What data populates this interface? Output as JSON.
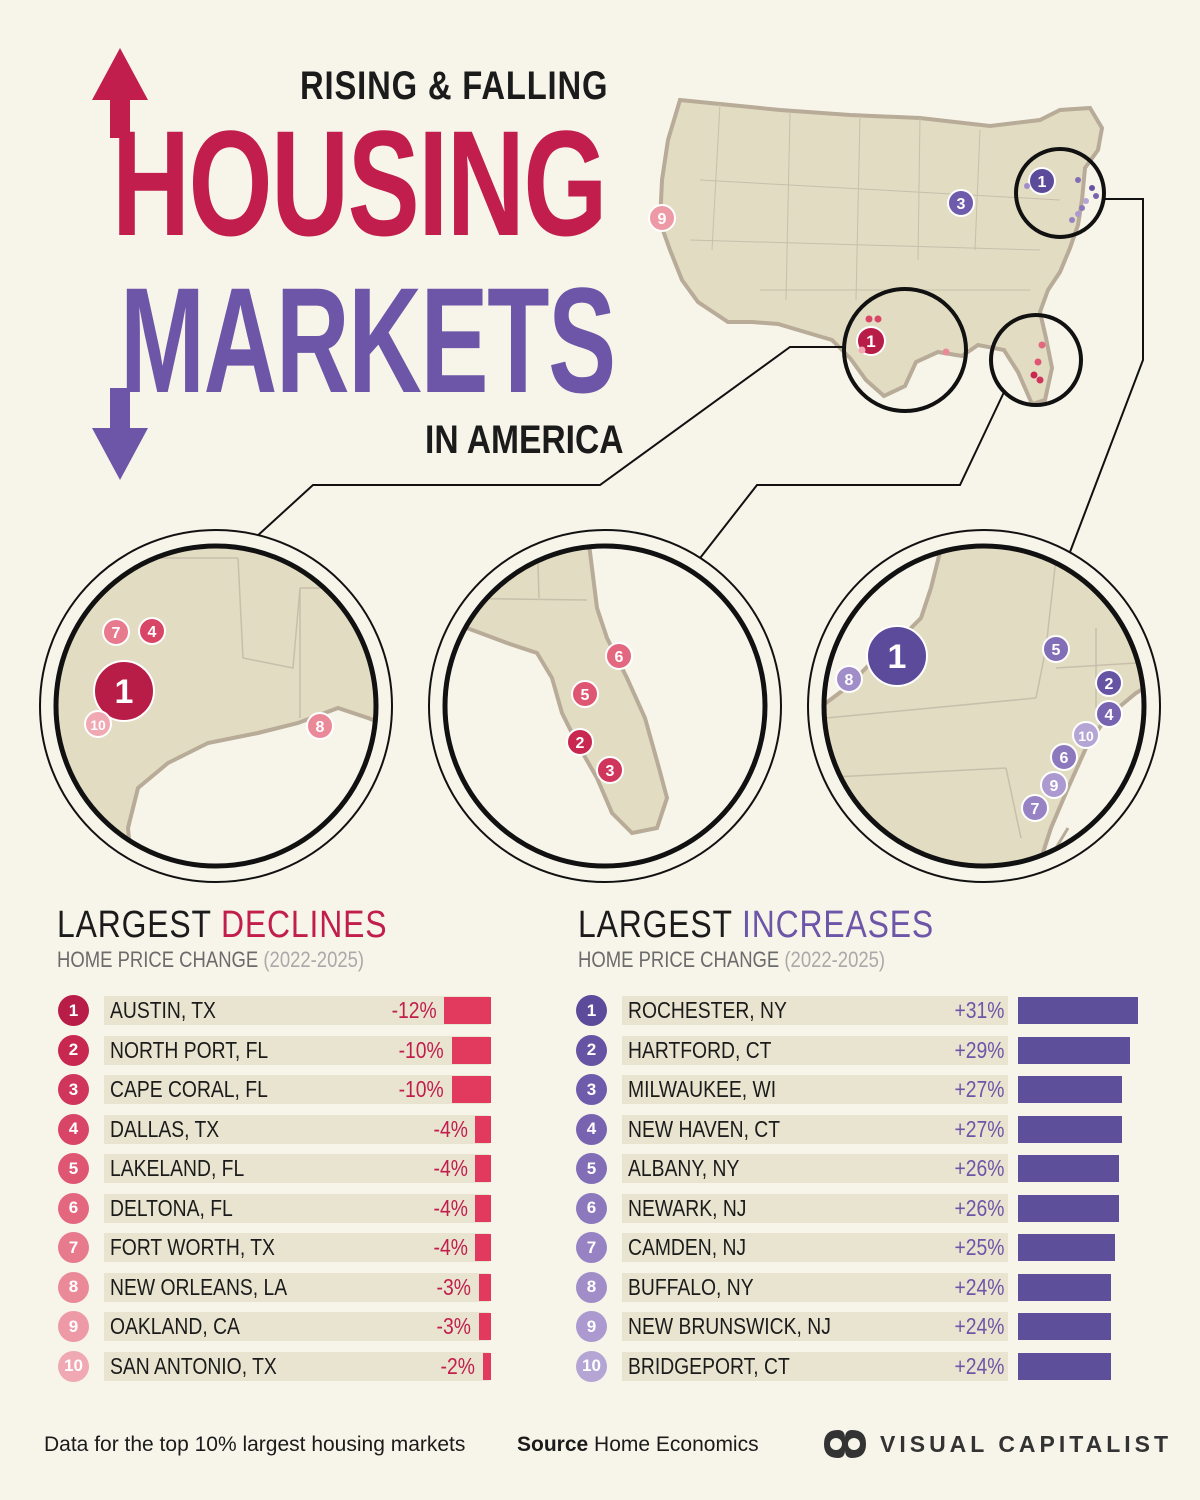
{
  "title": {
    "line1": "RISING & FALLING",
    "line2": "HOUSING",
    "line3": "MARKETS",
    "line4": "IN AMERICA"
  },
  "colors": {
    "decline": "#c21e4d",
    "increase": "#6d55a8",
    "increase_bar": "#5e4f9a",
    "decline_bar": "#e23a5e"
  },
  "declines_section": {
    "title_prefix": "LARGEST ",
    "title_accent": "DECLINES",
    "subtitle": "HOME PRICE CHANGE ",
    "period": "(2022-2025)"
  },
  "increases_section": {
    "title_prefix": "LARGEST ",
    "title_accent": "INCREASES",
    "subtitle": "HOME PRICE CHANGE ",
    "period": "(2022-2025)"
  },
  "chart_data": [
    {
      "type": "bar",
      "title": "LARGEST DECLINES",
      "subtitle": "HOME PRICE CHANGE (2022-2025)",
      "ranks": [
        "1",
        "2",
        "3",
        "4",
        "5",
        "6",
        "7",
        "8",
        "9",
        "10"
      ],
      "categories": [
        "AUSTIN, TX",
        "NORTH PORT, FL",
        "CAPE CORAL, FL",
        "DALLAS, TX",
        "LAKELAND, FL",
        "DELTONA, FL",
        "FORT WORTH, TX",
        "NEW ORLEANS, LA",
        "OAKLAND, CA",
        "SAN ANTONIO, TX"
      ],
      "values": [
        -12,
        -10,
        -10,
        -4,
        -4,
        -4,
        -4,
        -3,
        -3,
        -2
      ],
      "labels": [
        "-12%",
        "-10%",
        "-10%",
        "-4%",
        "-4%",
        "-4%",
        "-4%",
        "-3%",
        "-3%",
        "-2%"
      ],
      "badge_colors": [
        "#b81d48",
        "#c8274f",
        "#d0365c",
        "#d94567",
        "#df5673",
        "#e3687f",
        "#e77a8c",
        "#ea8a99",
        "#ee9aa6",
        "#f0a8b2"
      ]
    },
    {
      "type": "bar",
      "title": "LARGEST INCREASES",
      "subtitle": "HOME PRICE CHANGE (2022-2025)",
      "ranks": [
        "1",
        "2",
        "3",
        "4",
        "5",
        "6",
        "7",
        "8",
        "9",
        "10"
      ],
      "categories": [
        "ROCHESTER, NY",
        "HARTFORD, CT",
        "MILWAUKEE, WI",
        "NEW HAVEN, CT",
        "ALBANY, NY",
        "NEWARK, NJ",
        "CAMDEN, NJ",
        "BUFFALO, NY",
        "NEW BRUNSWICK, NJ",
        "BRIDGEPORT, CT"
      ],
      "values": [
        31,
        29,
        27,
        27,
        26,
        26,
        25,
        24,
        24,
        24
      ],
      "labels": [
        "+31%",
        "+29%",
        "+27%",
        "+27%",
        "+26%",
        "+26%",
        "+25%",
        "+24%",
        "+24%",
        "+24%"
      ],
      "badge_colors": [
        "#5c4b9b",
        "#6753a3",
        "#6f5bab",
        "#7863b1",
        "#826db7",
        "#8c78bd",
        "#9783c3",
        "#a18ec9",
        "#ab99cf",
        "#b5a5d5"
      ]
    }
  ],
  "map_labels": {
    "us_decline": [
      "9",
      "1"
    ],
    "us_increase": [
      "1",
      "3"
    ],
    "texas": [
      "7",
      "4",
      "1",
      "10",
      "8"
    ],
    "florida": [
      "6",
      "5",
      "2",
      "3"
    ],
    "northeast": [
      "1",
      "8",
      "5",
      "2",
      "4",
      "10",
      "6",
      "9",
      "7"
    ]
  },
  "footer": {
    "note": "Data for the top 10% largest housing markets",
    "source_label": "Source",
    "source": "Home Economics",
    "brand": "VISUAL CAPITALIST"
  }
}
